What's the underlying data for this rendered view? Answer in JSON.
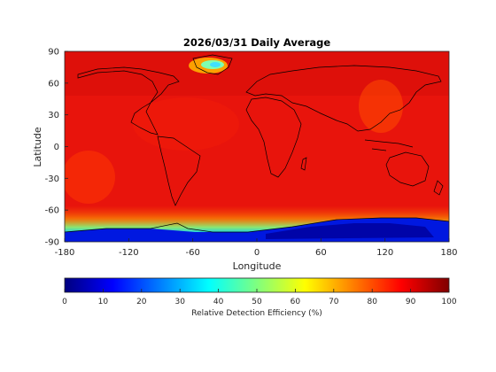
{
  "chart_data": {
    "type": "heatmap",
    "title": "2026/03/31 Daily Average",
    "xlabel": "Longitude",
    "ylabel": "Latitude",
    "xlim": [
      -180,
      180
    ],
    "ylim": [
      -90,
      90
    ],
    "xticks": [
      "-180",
      "-120",
      "-60",
      "0",
      "60",
      "120",
      "180"
    ],
    "yticks": [
      "90",
      "60",
      "30",
      "0",
      "-30",
      "-60",
      "-90"
    ],
    "colormap": "jet",
    "colorbar": {
      "label": "Relative Detection Efficiency (%)",
      "range": [
        0,
        100
      ],
      "ticks": [
        "0",
        "10",
        "20",
        "30",
        "40",
        "50",
        "60",
        "70",
        "80",
        "90",
        "100"
      ]
    },
    "field_summary": {
      "dominant_value_percent": 95,
      "antarctica_value_percent": 8,
      "southern_ocean_band_percent": 40,
      "greenland_value_percent": 45
    }
  },
  "colors": {
    "jet_stops": [
      "#00007f",
      "#0000ff",
      "#007fff",
      "#00ffff",
      "#7fff7f",
      "#ffff00",
      "#ff7f00",
      "#ff0000",
      "#7f0000"
    ],
    "coastline": "#000000"
  }
}
